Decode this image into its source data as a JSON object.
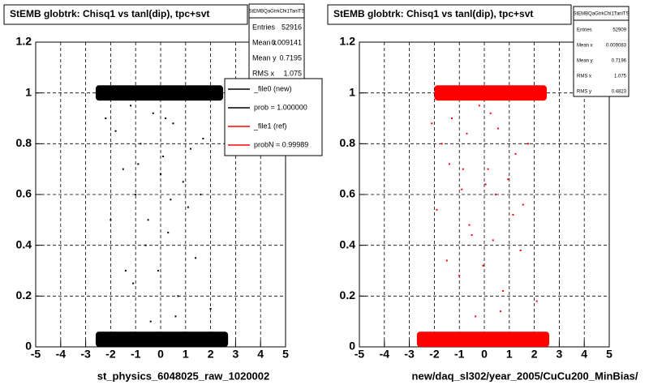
{
  "chart_data": [
    {
      "type": "scatter",
      "title": "StEMB globtrk: Chisq1 vs tanl(dip), tpc+svt",
      "x_label": "st_physics_6048025_raw_1020002",
      "stats_title": "StEMBQaGtrkChi1TanlTS",
      "stats": [
        {
          "label": "Entries",
          "value": "52916"
        },
        {
          "label": "Mean x",
          "value": "0.009141"
        },
        {
          "label": "Mean y",
          "value": "0.7195"
        },
        {
          "label": "RMS x",
          "value": "1.075"
        }
      ],
      "legend": [
        {
          "name": "_file0 (new)",
          "color": "#000000"
        },
        {
          "name": "prob = 1.000000",
          "color": "#000000"
        },
        {
          "name": "_file1 (ref)",
          "color": "#ff0000"
        },
        {
          "name": "probN = 0.99989",
          "color": "#ff0000"
        }
      ],
      "color": "#000000",
      "x": [
        -2.2,
        -1.8,
        -1.5,
        -1.2,
        -1.0,
        -0.8,
        -0.5,
        -0.3,
        -0.1,
        0.1,
        0.3,
        0.5,
        0.7,
        0.9,
        1.1,
        1.4,
        1.7,
        2.0,
        -1.1,
        -0.6,
        0.0,
        0.6,
        1.2,
        -2.0,
        -0.4,
        0.4,
        1.6,
        -1.4,
        0.2,
        -0.9
      ],
      "y": [
        0.9,
        0.85,
        0.7,
        0.95,
        0.6,
        0.8,
        0.5,
        0.92,
        0.3,
        0.75,
        0.45,
        0.88,
        0.2,
        0.65,
        0.55,
        0.35,
        0.82,
        0.15,
        0.25,
        0.4,
        0.68,
        0.12,
        0.78,
        0.5,
        0.1,
        0.58,
        0.6,
        0.3,
        0.9,
        0.72
      ],
      "dense_regions": [
        {
          "x": [
            -2.6,
            2.5
          ],
          "y": [
            0.97,
            1.03
          ]
        },
        {
          "x": [
            -2.6,
            2.7
          ],
          "y": [
            0.0,
            0.06
          ]
        }
      ],
      "xlim": [
        -5,
        5
      ],
      "ylim": [
        0,
        1.2
      ],
      "xticks": [
        -5,
        -4,
        -3,
        -2,
        -1,
        0,
        1,
        2,
        3,
        4,
        5
      ],
      "yticks": [
        0,
        0.2,
        0.4,
        0.6,
        0.8,
        1,
        1.2
      ],
      "grid": true
    },
    {
      "type": "scatter",
      "title": "StEMB globtrk: Chisq1 vs tanl(dip), tpc+svt",
      "x_label": "new/daq_sl302/year_2005/CuCu200_MinBias/",
      "stats_title": "StEMBQaGtrkChi1TanlTS",
      "stats": [
        {
          "label": "Entries",
          "value": "52909"
        },
        {
          "label": "Mean x",
          "value": "0.009083"
        },
        {
          "label": "Mean y",
          "value": "0.7196"
        },
        {
          "label": "RMS x",
          "value": "1.075"
        },
        {
          "label": "RMS y",
          "value": "0.4823"
        }
      ],
      "color": "#ff0000",
      "x": [
        -2.1,
        -1.7,
        -1.4,
        -1.3,
        -0.9,
        -0.7,
        -0.6,
        -0.2,
        -0.05,
        0.15,
        0.35,
        0.55,
        0.75,
        0.95,
        1.15,
        1.45,
        1.75,
        2.1,
        -1.0,
        -0.5,
        0.05,
        0.65,
        1.25,
        -1.9,
        -0.35,
        0.45,
        1.55,
        -1.5,
        0.25,
        -0.85
      ],
      "y": [
        0.88,
        0.8,
        0.72,
        0.9,
        0.62,
        0.84,
        0.48,
        0.95,
        0.32,
        0.7,
        0.42,
        0.86,
        0.22,
        0.66,
        0.52,
        0.38,
        0.8,
        0.18,
        0.28,
        0.44,
        0.64,
        0.14,
        0.76,
        0.54,
        0.12,
        0.6,
        0.56,
        0.34,
        0.92,
        0.7
      ],
      "dense_regions": [
        {
          "x": [
            -2.0,
            2.5
          ],
          "y": [
            0.97,
            1.03
          ]
        },
        {
          "x": [
            -2.7,
            2.6
          ],
          "y": [
            0.0,
            0.06
          ]
        }
      ],
      "xlim": [
        -5,
        5
      ],
      "ylim": [
        0,
        1.2
      ],
      "xticks": [
        -5,
        -4,
        -3,
        -2,
        -1,
        0,
        1,
        2,
        3,
        4,
        5
      ],
      "yticks": [
        0,
        0.2,
        0.4,
        0.6,
        0.8,
        1,
        1.2
      ],
      "grid": true
    }
  ]
}
